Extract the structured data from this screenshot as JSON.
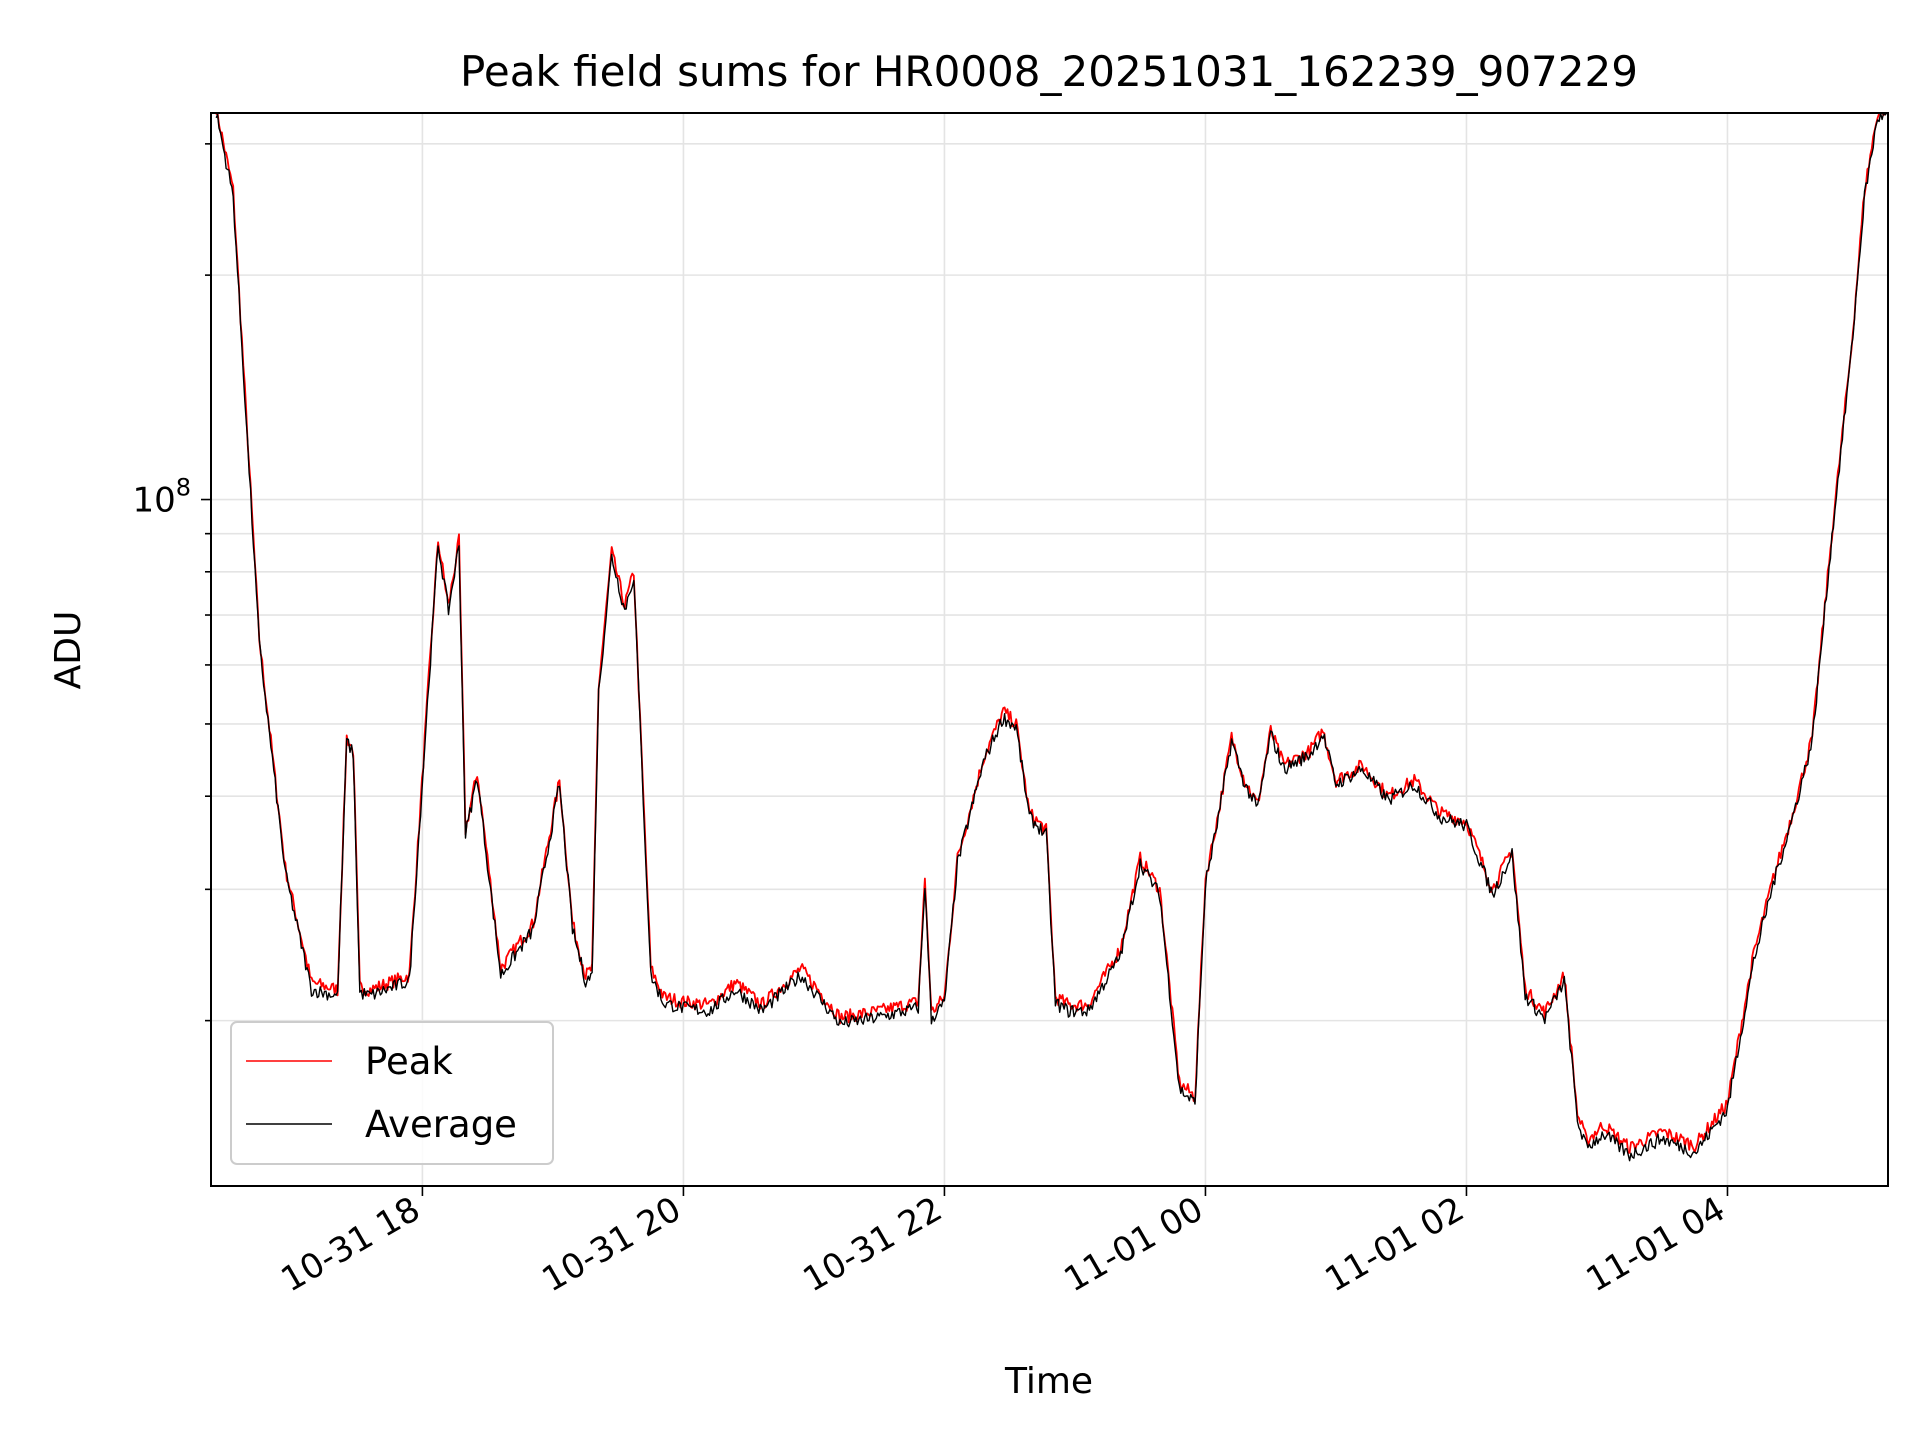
{
  "chart_data": {
    "type": "line",
    "title": "Peak field sums for HR0008_20251031_162239_907229",
    "xlabel": "Time",
    "ylabel": "ADU",
    "yscale": "log",
    "ylim": [
      12000000,
      330000000
    ],
    "xlim": [
      16.38,
      29.23
    ],
    "x_unit": "hours since 10-31 00:00",
    "x_ticks": [
      {
        "value": 18,
        "label": "10-31 18"
      },
      {
        "value": 20,
        "label": "10-31 20"
      },
      {
        "value": 22,
        "label": "10-31 22"
      },
      {
        "value": 24,
        "label": "11-01 00"
      },
      {
        "value": 26,
        "label": "11-01 02"
      },
      {
        "value": 28,
        "label": "11-01 04"
      }
    ],
    "y_ticks": [
      {
        "value": 100000000,
        "base": "10",
        "exponent": "8"
      }
    ],
    "y_minor_ticks": [
      20000000,
      30000000,
      40000000,
      50000000,
      60000000,
      70000000,
      80000000,
      90000000,
      200000000,
      300000000
    ],
    "grid": true,
    "legend": {
      "position": "bottom-left",
      "entries": [
        {
          "label": "Peak",
          "color": "#ff0000"
        },
        {
          "label": "Average",
          "color": "#000000"
        }
      ]
    },
    "series": [
      {
        "name": "Peak",
        "color": "#ff0000",
        "x": [
          16.42,
          16.55,
          16.75,
          16.95,
          17.15,
          17.35,
          17.42,
          17.47,
          17.52,
          17.6,
          17.9,
          18.05,
          18.12,
          18.2,
          18.28,
          18.33,
          18.42,
          18.6,
          18.85,
          19.05,
          19.15,
          19.25,
          19.3,
          19.35,
          19.45,
          19.55,
          19.62,
          19.68,
          19.75,
          19.85,
          20.0,
          20.2,
          20.4,
          20.6,
          20.9,
          21.2,
          21.5,
          21.8,
          21.85,
          21.9,
          22.0,
          22.1,
          22.3,
          22.45,
          22.55,
          22.65,
          22.78,
          22.85,
          22.95,
          23.1,
          23.35,
          23.5,
          23.65,
          23.8,
          23.92,
          24.0,
          24.1,
          24.2,
          24.3,
          24.4,
          24.5,
          24.6,
          24.7,
          24.8,
          24.9,
          25.0,
          25.2,
          25.4,
          25.6,
          25.8,
          26.0,
          26.2,
          26.35,
          26.45,
          26.6,
          26.75,
          26.85,
          26.92,
          27.05,
          27.25,
          27.5,
          27.75,
          28.0,
          28.2,
          28.35,
          28.5,
          28.65,
          28.8,
          28.95,
          29.05,
          29.15,
          29.22
        ],
        "values": [
          335000000,
          260000000,
          65000000,
          32000000,
          22500000,
          22000000,
          48000000,
          46000000,
          22200000,
          22000000,
          23000000,
          58000000,
          88000000,
          72000000,
          88000000,
          36000000,
          43000000,
          23500000,
          27000000,
          42000000,
          27000000,
          23000000,
          23500000,
          56000000,
          85000000,
          72000000,
          80000000,
          45000000,
          23500000,
          21500000,
          21200000,
          21000000,
          22500000,
          21000000,
          23500000,
          20200000,
          20600000,
          21200000,
          31000000,
          20500000,
          21500000,
          33000000,
          45000000,
          52000000,
          50000000,
          38000000,
          36000000,
          21500000,
          21000000,
          21000000,
          25000000,
          33000000,
          30000000,
          16500000,
          15800000,
          31000000,
          38000000,
          48000000,
          42000000,
          39000000,
          49000000,
          44000000,
          45000000,
          46000000,
          49000000,
          42000000,
          44000000,
          40000000,
          42000000,
          38000000,
          37000000,
          30000000,
          34000000,
          22000000,
          20500000,
          23000000,
          15000000,
          13800000,
          14500000,
          13500000,
          14200000,
          13600000,
          15500000,
          24500000,
          31000000,
          38000000,
          48000000,
          90000000,
          160000000,
          260000000,
          330000000,
          335000000
        ]
      },
      {
        "name": "Average",
        "color": "#000000",
        "x": [
          16.42,
          16.55,
          16.75,
          16.95,
          17.15,
          17.35,
          17.42,
          17.47,
          17.52,
          17.6,
          17.9,
          18.05,
          18.12,
          18.2,
          18.28,
          18.33,
          18.42,
          18.6,
          18.85,
          19.05,
          19.15,
          19.25,
          19.3,
          19.35,
          19.45,
          19.55,
          19.62,
          19.68,
          19.75,
          19.85,
          20.0,
          20.2,
          20.4,
          20.6,
          20.9,
          21.2,
          21.5,
          21.8,
          21.85,
          21.9,
          22.0,
          22.1,
          22.3,
          22.45,
          22.55,
          22.65,
          22.78,
          22.85,
          22.95,
          23.1,
          23.35,
          23.5,
          23.65,
          23.8,
          23.92,
          24.0,
          24.1,
          24.2,
          24.3,
          24.4,
          24.5,
          24.6,
          24.7,
          24.8,
          24.9,
          25.0,
          25.2,
          25.4,
          25.6,
          25.8,
          26.0,
          26.2,
          26.35,
          26.45,
          26.6,
          26.75,
          26.85,
          26.92,
          27.05,
          27.25,
          27.5,
          27.75,
          28.0,
          28.2,
          28.35,
          28.5,
          28.65,
          28.8,
          28.95,
          29.05,
          29.15,
          29.22
        ],
        "values": [
          330000000,
          255000000,
          64000000,
          31500000,
          22000000,
          21600000,
          47500000,
          45500000,
          21800000,
          21600000,
          22600000,
          57000000,
          87000000,
          71000000,
          87000000,
          35500000,
          42500000,
          23000000,
          26500000,
          41500000,
          26500000,
          22600000,
          23000000,
          55000000,
          84000000,
          71000000,
          79000000,
          44500000,
          23000000,
          21100000,
          20800000,
          20600000,
          22000000,
          20600000,
          23000000,
          19800000,
          20200000,
          20800000,
          30500000,
          20100000,
          21100000,
          32500000,
          44500000,
          51000000,
          49500000,
          37500000,
          35500000,
          21100000,
          20600000,
          20600000,
          24500000,
          32500000,
          29500000,
          16200000,
          15500000,
          30500000,
          37500000,
          47500000,
          41500000,
          38500000,
          48500000,
          43500000,
          44500000,
          45500000,
          48500000,
          41500000,
          43500000,
          39500000,
          41500000,
          37500000,
          36500000,
          29500000,
          33500000,
          21600000,
          20100000,
          22600000,
          14700000,
          13500000,
          14100000,
          13200000,
          13900000,
          13300000,
          15200000,
          24000000,
          30500000,
          37500000,
          47500000,
          89000000,
          158000000,
          255000000,
          325000000,
          330000000
        ]
      }
    ]
  }
}
